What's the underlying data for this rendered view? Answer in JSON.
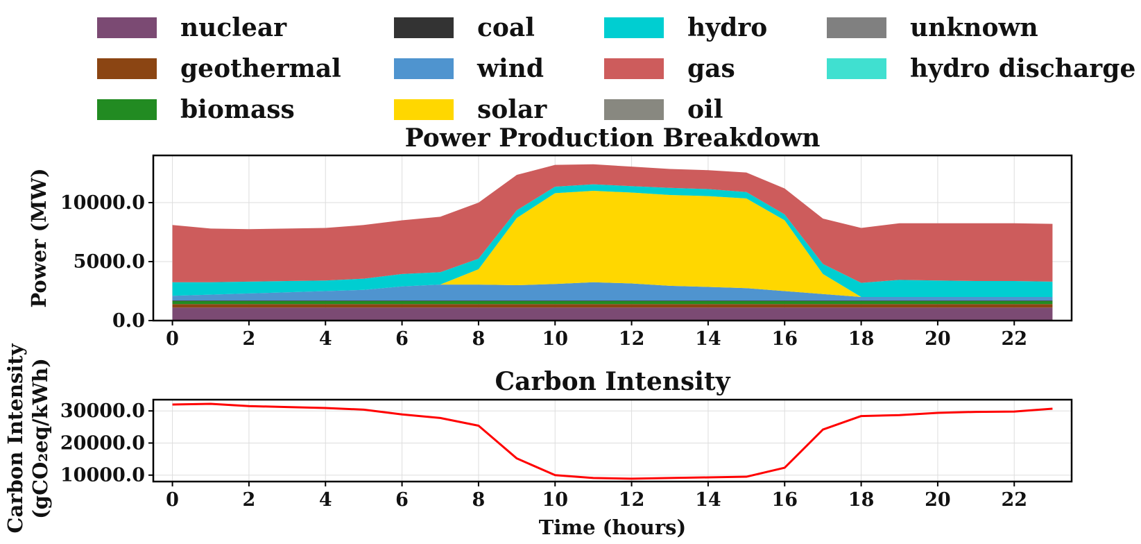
{
  "legend": [
    {
      "key": "nuclear",
      "label": "nuclear",
      "color": "#7b4a73"
    },
    {
      "key": "geothermal",
      "label": "geothermal",
      "color": "#8b4513"
    },
    {
      "key": "biomass",
      "label": "biomass",
      "color": "#228b22"
    },
    {
      "key": "coal",
      "label": "coal",
      "color": "#333333"
    },
    {
      "key": "wind",
      "label": "wind",
      "color": "#4f94cf"
    },
    {
      "key": "solar",
      "label": "solar",
      "color": "#ffd700"
    },
    {
      "key": "hydro",
      "label": "hydro",
      "color": "#00ced1"
    },
    {
      "key": "gas",
      "label": "gas",
      "color": "#cd5c5c"
    },
    {
      "key": "oil",
      "label": "oil",
      "color": "#888880"
    },
    {
      "key": "unknown",
      "label": "unknown",
      "color": "#808080"
    },
    {
      "key": "hydro_discharge",
      "label": "hydro discharge",
      "color": "#40e0d0"
    }
  ],
  "chart_data": [
    {
      "type": "area",
      "stacked": true,
      "title": "Power Production Breakdown",
      "xlabel": "",
      "ylabel": "Power (MW)",
      "x": [
        0,
        1,
        2,
        3,
        4,
        5,
        6,
        7,
        8,
        9,
        10,
        11,
        12,
        13,
        14,
        15,
        16,
        17,
        18,
        19,
        20,
        21,
        22,
        23
      ],
      "xticks": [
        0,
        2,
        4,
        6,
        8,
        10,
        12,
        14,
        16,
        18,
        20,
        22
      ],
      "xticklabels": [
        "0",
        "2",
        "4",
        "6",
        "8",
        "10",
        "12",
        "14",
        "16",
        "18",
        "20",
        "22"
      ],
      "yticks": [
        0,
        5000,
        10000
      ],
      "yticklabels": [
        "0.0",
        "5000.0",
        "10000.0"
      ],
      "xlim": [
        -0.5,
        23.5
      ],
      "ylim": [
        0,
        14000
      ],
      "grid": true,
      "series": [
        {
          "key": "nuclear",
          "name": "nuclear",
          "values": [
            1100,
            1100,
            1100,
            1100,
            1100,
            1100,
            1100,
            1100,
            1100,
            1100,
            1100,
            1100,
            1100,
            1100,
            1100,
            1100,
            1100,
            1100,
            1100,
            1100,
            1100,
            1100,
            1100,
            1100
          ]
        },
        {
          "key": "geothermal",
          "name": "geothermal",
          "values": [
            300,
            300,
            300,
            300,
            300,
            300,
            300,
            300,
            300,
            300,
            300,
            300,
            300,
            300,
            300,
            300,
            300,
            300,
            300,
            300,
            300,
            300,
            300,
            300
          ]
        },
        {
          "key": "biomass",
          "name": "biomass",
          "values": [
            250,
            250,
            250,
            250,
            250,
            250,
            250,
            250,
            250,
            250,
            250,
            250,
            250,
            250,
            250,
            250,
            250,
            250,
            250,
            250,
            250,
            250,
            250,
            250
          ]
        },
        {
          "key": "coal",
          "name": "coal",
          "values": [
            50,
            50,
            50,
            50,
            50,
            50,
            50,
            50,
            50,
            50,
            50,
            50,
            50,
            50,
            50,
            50,
            50,
            50,
            50,
            50,
            50,
            50,
            50,
            50
          ]
        },
        {
          "key": "wind",
          "name": "wind",
          "values": [
            400,
            500,
            600,
            700,
            800,
            900,
            1200,
            1350,
            1350,
            1300,
            1400,
            1550,
            1450,
            1250,
            1150,
            1050,
            800,
            550,
            300,
            300,
            300,
            300,
            300,
            300
          ]
        },
        {
          "key": "solar",
          "name": "solar",
          "values": [
            0,
            0,
            0,
            0,
            0,
            0,
            0,
            0,
            1300,
            5700,
            7700,
            7750,
            7700,
            7700,
            7700,
            7600,
            6000,
            1700,
            0,
            0,
            0,
            0,
            0,
            0
          ]
        },
        {
          "key": "hydro",
          "name": "hydro",
          "values": [
            1150,
            1050,
            1000,
            950,
            900,
            950,
            1050,
            1050,
            900,
            650,
            550,
            550,
            550,
            600,
            600,
            550,
            500,
            850,
            1200,
            1450,
            1400,
            1350,
            1350,
            1300
          ]
        },
        {
          "key": "gas",
          "name": "gas",
          "values": [
            4850,
            4550,
            4450,
            4450,
            4450,
            4550,
            4550,
            4700,
            4750,
            3000,
            1850,
            1700,
            1650,
            1600,
            1600,
            1650,
            2200,
            3850,
            4650,
            4800,
            4850,
            4900,
            4900,
            4900
          ]
        },
        {
          "key": "oil",
          "name": "oil",
          "values": [
            0,
            0,
            0,
            0,
            0,
            0,
            0,
            0,
            0,
            0,
            0,
            0,
            0,
            0,
            0,
            0,
            0,
            0,
            0,
            0,
            0,
            0,
            0,
            0
          ]
        },
        {
          "key": "unknown",
          "name": "unknown",
          "values": [
            0,
            0,
            0,
            0,
            0,
            0,
            0,
            0,
            0,
            0,
            0,
            0,
            0,
            0,
            0,
            0,
            0,
            0,
            0,
            0,
            0,
            0,
            0,
            0
          ]
        },
        {
          "key": "hydro_discharge",
          "name": "hydro discharge",
          "values": [
            0,
            0,
            0,
            0,
            0,
            0,
            0,
            0,
            0,
            0,
            0,
            0,
            0,
            0,
            0,
            0,
            0,
            0,
            0,
            0,
            0,
            0,
            0,
            0
          ]
        }
      ]
    },
    {
      "type": "line",
      "title": "Carbon Intensity",
      "xlabel": "Time (hours)",
      "ylabel_lines": [
        "Carbon Intensity",
        "(gCO₂eq/kWh)"
      ],
      "x": [
        0,
        1,
        2,
        3,
        4,
        5,
        6,
        7,
        8,
        9,
        10,
        11,
        12,
        13,
        14,
        15,
        16,
        17,
        18,
        19,
        20,
        21,
        22,
        23
      ],
      "xticks": [
        0,
        2,
        4,
        6,
        8,
        10,
        12,
        14,
        16,
        18,
        20,
        22
      ],
      "xticklabels": [
        "0",
        "2",
        "4",
        "6",
        "8",
        "10",
        "12",
        "14",
        "16",
        "18",
        "20",
        "22"
      ],
      "yticks": [
        10000,
        20000,
        30000
      ],
      "yticklabels": [
        "10000.0",
        "20000.0",
        "30000.0"
      ],
      "xlim": [
        -0.5,
        23.5
      ],
      "ylim": [
        8000,
        33500
      ],
      "grid": true,
      "series": [
        {
          "name": "carbon intensity",
          "color": "#ff0000",
          "values": [
            32000,
            32200,
            31500,
            31200,
            30900,
            30400,
            28900,
            27800,
            25400,
            15200,
            10000,
            9100,
            8900,
            9100,
            9300,
            9500,
            12300,
            24200,
            28400,
            28700,
            29400,
            29700,
            29800,
            30700
          ]
        }
      ]
    }
  ]
}
